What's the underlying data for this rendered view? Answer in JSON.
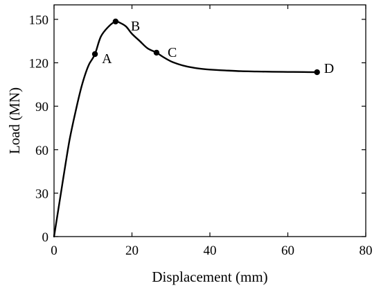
{
  "chart_data": {
    "type": "line",
    "xlabel": "Displacement (mm)",
    "ylabel": "Load (MN)",
    "xlim": [
      0,
      80
    ],
    "ylim": [
      0,
      160
    ],
    "xticks": [
      0,
      20,
      40,
      60,
      80
    ],
    "yticks": [
      0,
      30,
      60,
      90,
      120,
      150
    ],
    "grid": false,
    "colors": {
      "line": "#000000",
      "frame": "#000000"
    },
    "series": [
      {
        "x": [
          0,
          1,
          2,
          3,
          4,
          5,
          6,
          7,
          8,
          9,
          10.5,
          12,
          14,
          15.8,
          17,
          18.5,
          20,
          22,
          24,
          26.3,
          28,
          30,
          32,
          34,
          36,
          38,
          40,
          44,
          48,
          52,
          56,
          60,
          64,
          67.5
        ],
        "y": [
          0,
          17,
          34,
          51,
          67,
          80,
          92,
          103,
          112,
          119,
          126,
          138,
          145,
          148.5,
          147.5,
          145,
          140,
          135,
          130,
          127,
          124,
          121,
          119,
          117.5,
          116.5,
          115.8,
          115.3,
          114.7,
          114.2,
          114,
          113.8,
          113.7,
          113.6,
          113.5
        ]
      }
    ],
    "points": [
      {
        "label": "A",
        "x": 10.5,
        "y": 126
      },
      {
        "label": "B",
        "x": 15.8,
        "y": 148.5
      },
      {
        "label": "C",
        "x": 26.3,
        "y": 127
      },
      {
        "label": "D",
        "x": 67.5,
        "y": 113.5
      }
    ]
  }
}
